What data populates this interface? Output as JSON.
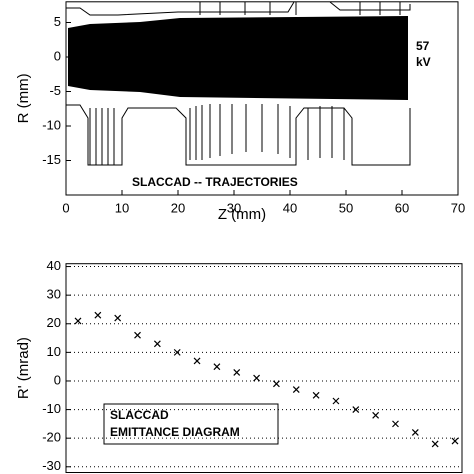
{
  "chart_data": [
    {
      "type": "trajectory",
      "xlabel": "Z (mm)",
      "ylabel": "R (mm)",
      "annotation": [
        "SLACCAD -- TRAJECTORIES"
      ],
      "voltage": [
        "57",
        "kV"
      ],
      "xlim": [
        0,
        70
      ],
      "xticks": [
        0,
        10,
        20,
        30,
        40,
        50,
        60,
        70
      ],
      "ylim": [
        -20,
        8
      ],
      "yticks": [
        -15,
        -10,
        -5,
        0,
        5
      ]
    },
    {
      "type": "line",
      "marker": "x",
      "color": "#000000",
      "grid": true,
      "ylabel": "R' (mrad)",
      "annotation": [
        "SLACCAD",
        "EMITTANCE DIAGRAM"
      ],
      "categories": [
        null,
        null,
        null,
        null,
        null,
        null,
        null,
        null,
        null,
        null,
        null,
        null,
        null,
        null,
        null,
        null,
        null,
        null,
        null,
        null
      ],
      "values": [
        21,
        23,
        22,
        16,
        13,
        10,
        7,
        5,
        3,
        1,
        -1,
        -3,
        -5,
        -7,
        -10,
        -12,
        -15,
        -18,
        -22,
        -21
      ],
      "ylim": [
        -32,
        41
      ],
      "yticks": [
        -30,
        -20,
        -10,
        0,
        10,
        20,
        30,
        40
      ]
    }
  ]
}
